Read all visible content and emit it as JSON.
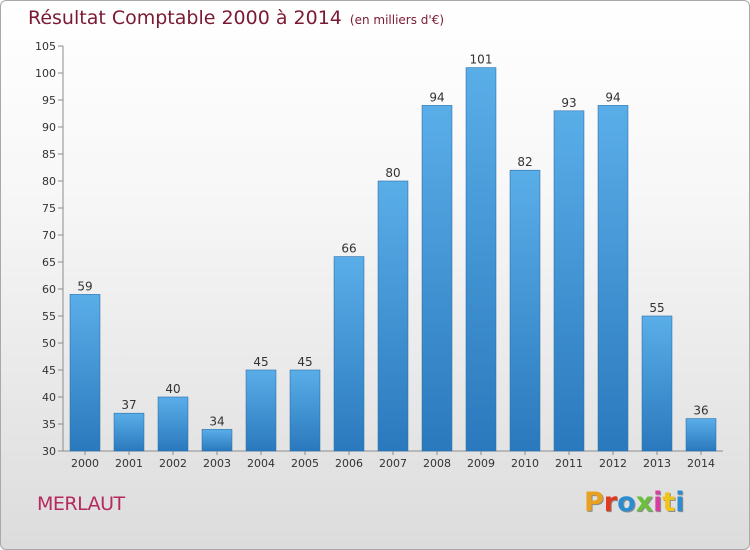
{
  "title": "Résultat Comptable 2000 à 2014",
  "subtitle": "(en milliers d'€)",
  "town": "MERLAUT",
  "logo": {
    "text": "Proxiti",
    "colors": [
      "#e8a020",
      "#e23a1f",
      "#2b8ccf",
      "#6abf3b",
      "#d43fa0",
      "#f0c419",
      "#2b8ccf"
    ]
  },
  "colors": {
    "bar_top": "#5aaee8",
    "bar_bottom": "#2a79bd",
    "title": "#7a1a33",
    "town": "#b5295e"
  },
  "chart_data": {
    "type": "bar",
    "title": "Résultat Comptable 2000 à 2014",
    "xlabel": "",
    "ylabel": "",
    "categories": [
      "2000",
      "2001",
      "2002",
      "2003",
      "2004",
      "2005",
      "2006",
      "2007",
      "2008",
      "2009",
      "2010",
      "2011",
      "2012",
      "2013",
      "2014"
    ],
    "values": [
      59,
      37,
      40,
      34,
      45,
      45,
      66,
      80,
      94,
      101,
      82,
      93,
      94,
      55,
      36
    ],
    "ylim": [
      30,
      105
    ],
    "yticks": [
      30,
      35,
      40,
      45,
      50,
      55,
      60,
      65,
      70,
      75,
      80,
      85,
      90,
      95,
      100,
      105
    ],
    "grid": false,
    "legend": "none"
  }
}
